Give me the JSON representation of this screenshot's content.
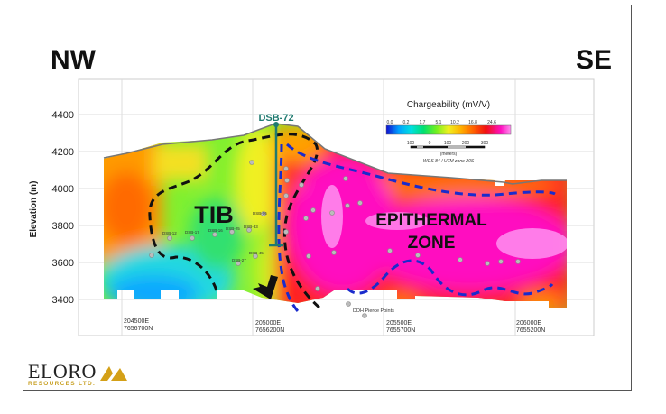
{
  "directions": {
    "left": "NW",
    "right": "SE"
  },
  "axis": {
    "ylabel": "Elevation (m)",
    "yticks": [
      "4400",
      "4200",
      "4000",
      "3800",
      "3600",
      "3400"
    ],
    "xticks": [
      {
        "e": "204500E",
        "n": "7656700N"
      },
      {
        "e": "205000E",
        "n": "7656200N"
      },
      {
        "e": "205500E",
        "n": "7655700N"
      },
      {
        "e": "206000E",
        "n": "7655200N"
      }
    ]
  },
  "legend": {
    "title": "Chargeability (mV/V)",
    "ticks": [
      "0.0",
      "0.2",
      "1.7",
      "5.1",
      "10.2",
      "16.8",
      "24.6"
    ],
    "colors": [
      "#1010d0",
      "#00a0ff",
      "#00e0e0",
      "#00e070",
      "#70f020",
      "#f0f020",
      "#ffb000",
      "#ff6000",
      "#f01010",
      "#ff10c0",
      "#ff80f0"
    ],
    "scale_ticks": [
      "100",
      "0",
      "100",
      "200",
      "300"
    ],
    "scale_unit": "(meters)",
    "projection": "WGS 84 / UTM zone 20S"
  },
  "drillhole": {
    "label": "DSB-72",
    "color": "#1f7a70"
  },
  "pierce_labels": [
    "DSB-12",
    "DSB-17",
    "DSB-16",
    "DSB-25",
    "DSB-33",
    "DSB-06",
    "DSB-45",
    "DSB-27"
  ],
  "zones": {
    "tib": "TIB",
    "epithermal_line1": "EPITHERMAL",
    "epithermal_line2": "ZONE"
  },
  "pierce_legend": "DDH Pierce Points",
  "logo": {
    "name": "ELORO",
    "sub": "RESOURCES LTD.",
    "accent": "#d4a017"
  }
}
